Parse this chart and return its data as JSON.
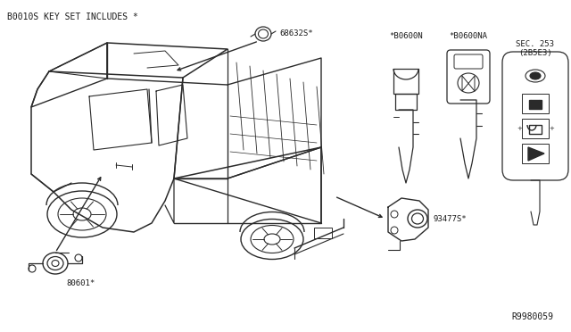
{
  "bg_color": "#ffffff",
  "line_color": "#2a2a2a",
  "text_color": "#1a1a1a",
  "header_text": "B0010S KEY SET INCLUDES *",
  "reference_code": "R9980059",
  "label_68632S": "68632S*",
  "label_80601": "80601*",
  "label_93477S": "93477S*",
  "label_B0600N": "*B0600N",
  "label_B0600NA": "*B0600NA",
  "label_SEC253_1": "SEC. 253",
  "label_SEC253_2": "(2B5E3)",
  "font_size": 6.5,
  "header_font_size": 7.0
}
